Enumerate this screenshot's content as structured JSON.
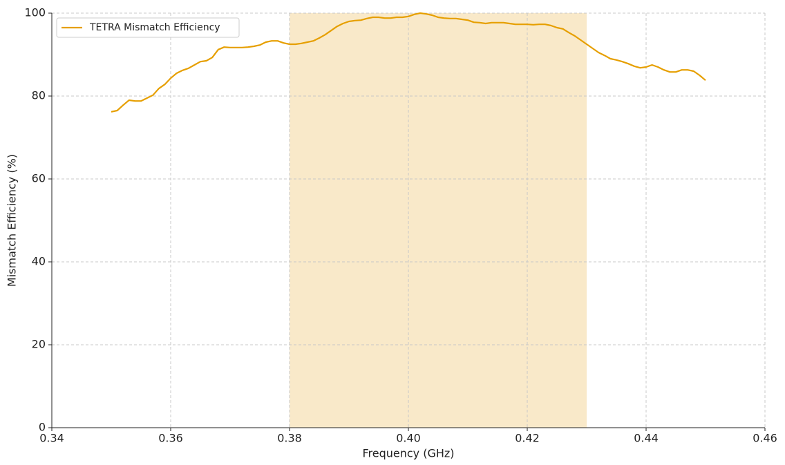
{
  "chart_data": {
    "type": "line",
    "x_label": "Frequency (GHz)",
    "y_label": "Mismatch Efficiency (%)",
    "x": [
      0.35,
      0.351,
      0.352,
      0.353,
      0.354,
      0.355,
      0.356,
      0.357,
      0.358,
      0.359,
      0.36,
      0.361,
      0.362,
      0.363,
      0.364,
      0.365,
      0.366,
      0.367,
      0.368,
      0.369,
      0.37,
      0.371,
      0.372,
      0.373,
      0.374,
      0.375,
      0.376,
      0.377,
      0.378,
      0.379,
      0.38,
      0.381,
      0.382,
      0.383,
      0.384,
      0.385,
      0.386,
      0.387,
      0.388,
      0.389,
      0.39,
      0.391,
      0.392,
      0.393,
      0.394,
      0.395,
      0.396,
      0.397,
      0.398,
      0.399,
      0.4,
      0.401,
      0.402,
      0.403,
      0.404,
      0.405,
      0.406,
      0.407,
      0.408,
      0.409,
      0.41,
      0.411,
      0.412,
      0.413,
      0.414,
      0.415,
      0.416,
      0.417,
      0.418,
      0.419,
      0.42,
      0.421,
      0.422,
      0.423,
      0.424,
      0.425,
      0.426,
      0.427,
      0.428,
      0.429,
      0.43,
      0.431,
      0.432,
      0.433,
      0.434,
      0.435,
      0.436,
      0.437,
      0.438,
      0.439,
      0.44,
      0.441,
      0.442,
      0.443,
      0.444,
      0.445,
      0.446,
      0.447,
      0.448,
      0.449,
      0.45
    ],
    "series": [
      {
        "name": "TETRA Mismatch Efficiency",
        "color": "#e69f00",
        "values": [
          76.2,
          76.5,
          77.8,
          79.0,
          78.8,
          78.8,
          79.5,
          80.2,
          81.8,
          82.8,
          84.3,
          85.5,
          86.2,
          86.7,
          87.5,
          88.3,
          88.5,
          89.3,
          91.2,
          91.8,
          91.7,
          91.7,
          91.7,
          91.8,
          92.0,
          92.3,
          93.0,
          93.3,
          93.3,
          92.8,
          92.5,
          92.5,
          92.7,
          93.0,
          93.3,
          94.0,
          94.8,
          95.8,
          96.8,
          97.5,
          98.0,
          98.2,
          98.3,
          98.7,
          99.0,
          99.0,
          98.8,
          98.8,
          99.0,
          99.0,
          99.2,
          99.7,
          100.0,
          99.8,
          99.5,
          99.0,
          98.8,
          98.7,
          98.7,
          98.5,
          98.3,
          97.8,
          97.7,
          97.5,
          97.7,
          97.7,
          97.7,
          97.5,
          97.3,
          97.3,
          97.3,
          97.2,
          97.3,
          97.3,
          97.0,
          96.5,
          96.2,
          95.3,
          94.5,
          93.5,
          92.5,
          91.5,
          90.5,
          89.8,
          89.0,
          88.7,
          88.3,
          87.8,
          87.2,
          86.8,
          87.0,
          87.5,
          87.0,
          86.3,
          85.8,
          85.8,
          86.3,
          86.3,
          86.0,
          85.0,
          83.8
        ]
      }
    ],
    "shade": {
      "range": [
        0.38,
        0.43
      ],
      "color": "#f9e9c9"
    },
    "xlim": [
      0.34,
      0.46
    ],
    "xticks": [
      {
        "value": 0.34,
        "label": "0.34"
      },
      {
        "value": 0.36,
        "label": "0.36"
      },
      {
        "value": 0.38,
        "label": "0.38"
      },
      {
        "value": 0.4,
        "label": "0.40"
      },
      {
        "value": 0.42,
        "label": "0.42"
      },
      {
        "value": 0.44,
        "label": "0.44"
      },
      {
        "value": 0.46,
        "label": "0.46"
      }
    ],
    "ylim": [
      0,
      100
    ],
    "yticks": [
      0,
      20,
      40,
      60,
      80,
      100
    ],
    "grid": true,
    "legend": "upper-left"
  }
}
